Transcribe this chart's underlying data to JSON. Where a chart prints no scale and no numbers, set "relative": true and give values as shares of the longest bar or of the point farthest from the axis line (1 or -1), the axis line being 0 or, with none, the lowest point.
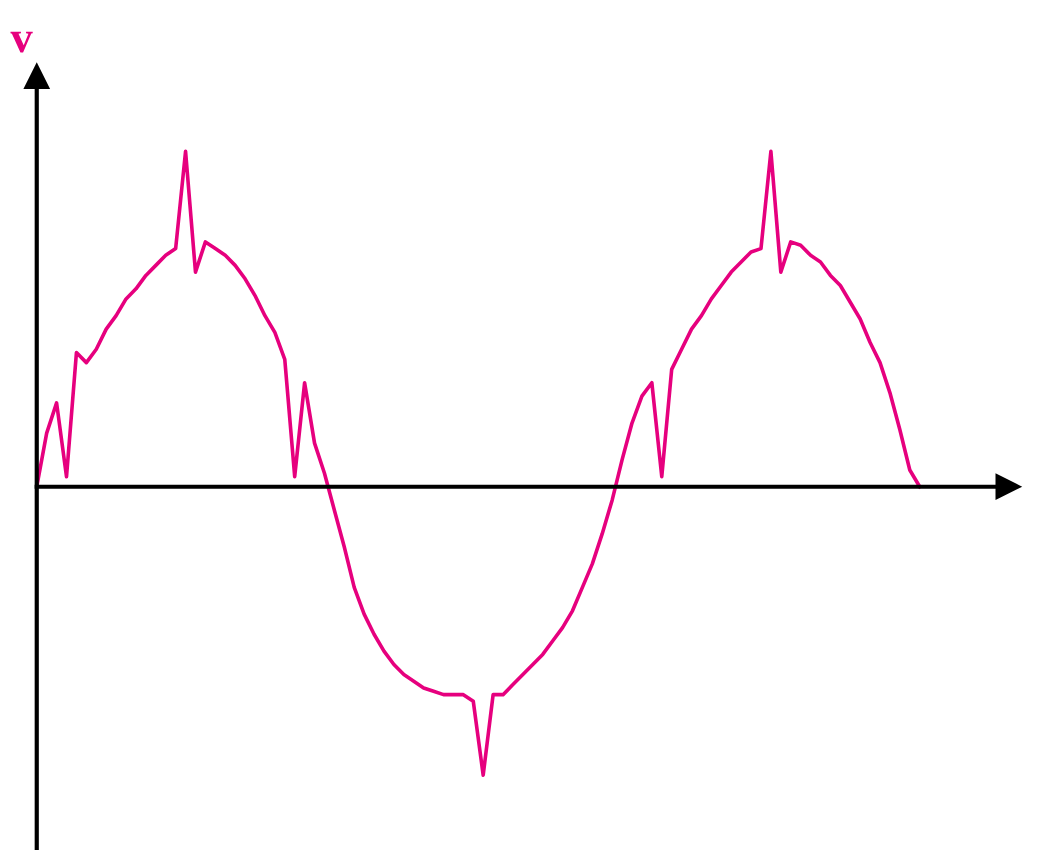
{
  "chart_data": {
    "type": "line",
    "relative": true,
    "ylabel": "v",
    "marker": "none",
    "line_style": "solid",
    "categories": [
      null,
      null,
      null,
      null,
      null,
      null,
      null,
      null,
      null,
      null,
      null,
      null,
      null,
      null,
      null,
      null,
      null,
      null,
      null,
      null,
      null,
      null,
      null,
      null,
      null,
      null,
      null,
      null,
      null,
      null,
      null,
      null,
      null,
      null,
      null,
      null,
      null,
      null,
      null,
      null,
      null,
      null,
      null,
      null,
      null,
      null,
      null,
      null,
      null,
      null,
      null,
      null,
      null,
      null,
      null,
      null,
      null,
      null,
      null,
      null,
      null,
      null,
      null,
      null,
      null,
      null,
      null,
      null,
      null,
      null,
      null,
      null,
      null,
      null,
      null,
      null,
      null,
      null,
      null,
      null,
      null,
      null,
      null,
      null,
      null,
      null,
      null,
      null,
      null,
      null
    ],
    "series": [
      {
        "color": "#e6007e",
        "values": [
          0,
          0.16,
          0.25,
          0.03,
          0.4,
          0.37,
          0.41,
          0.47,
          0.51,
          0.56,
          0.59,
          0.63,
          0.66,
          0.69,
          0.71,
          1,
          0.64,
          0.73,
          0.71,
          0.69,
          0.66,
          0.62,
          0.57,
          0.51,
          0.46,
          0.38,
          0.03,
          0.31,
          0.13,
          0.04,
          -0.07,
          -0.18,
          -0.3,
          -0.38,
          -0.44,
          -0.49,
          -0.53,
          -0.56,
          -0.58,
          -0.6,
          -0.61,
          -0.62,
          -0.62,
          -0.62,
          -0.64,
          -0.86,
          -0.62,
          -0.62,
          -0.59,
          -0.56,
          -0.53,
          -0.5,
          -0.46,
          -0.42,
          -0.37,
          -0.3,
          -0.23,
          -0.14,
          -0.04,
          0.08,
          0.19,
          0.27,
          0.31,
          0.03,
          0.35,
          0.41,
          0.47,
          0.51,
          0.56,
          0.6,
          0.64,
          0.67,
          0.7,
          0.71,
          1,
          0.64,
          0.73,
          0.72,
          0.69,
          0.67,
          0.63,
          0.6,
          0.55,
          0.5,
          0.43,
          0.37,
          0.28,
          0.17,
          0.05,
          0
        ]
      }
    ]
  }
}
